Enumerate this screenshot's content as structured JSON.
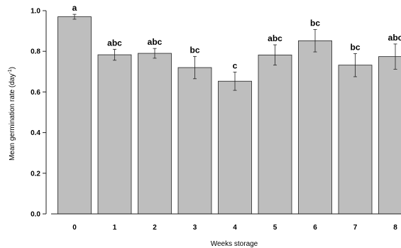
{
  "chart_data": {
    "type": "bar",
    "categories": [
      "0",
      "1",
      "2",
      "3",
      "4",
      "5",
      "6",
      "7",
      "8"
    ],
    "values": [
      0.97,
      0.783,
      0.79,
      0.72,
      0.653,
      0.782,
      0.852,
      0.732,
      0.774
    ],
    "errors": [
      0.012,
      0.027,
      0.024,
      0.055,
      0.045,
      0.05,
      0.055,
      0.057,
      0.062
    ],
    "significance_labels": [
      "a",
      "abc",
      "abc",
      "bc",
      "c",
      "abc",
      "bc",
      "bc",
      "abc"
    ],
    "xlabel": "Weeks storage",
    "ylabel": {
      "text": "Mean germination rate (day",
      "sup": "-1",
      "close": ")"
    },
    "ylim": [
      0,
      1.0
    ],
    "yticks": [
      "0.0",
      "0.2",
      "0.4",
      "0.6",
      "0.8",
      "1.0"
    ],
    "bar_color": "#bebebe",
    "bar_edge_color": "#222222",
    "grid": false,
    "legend": "none"
  }
}
